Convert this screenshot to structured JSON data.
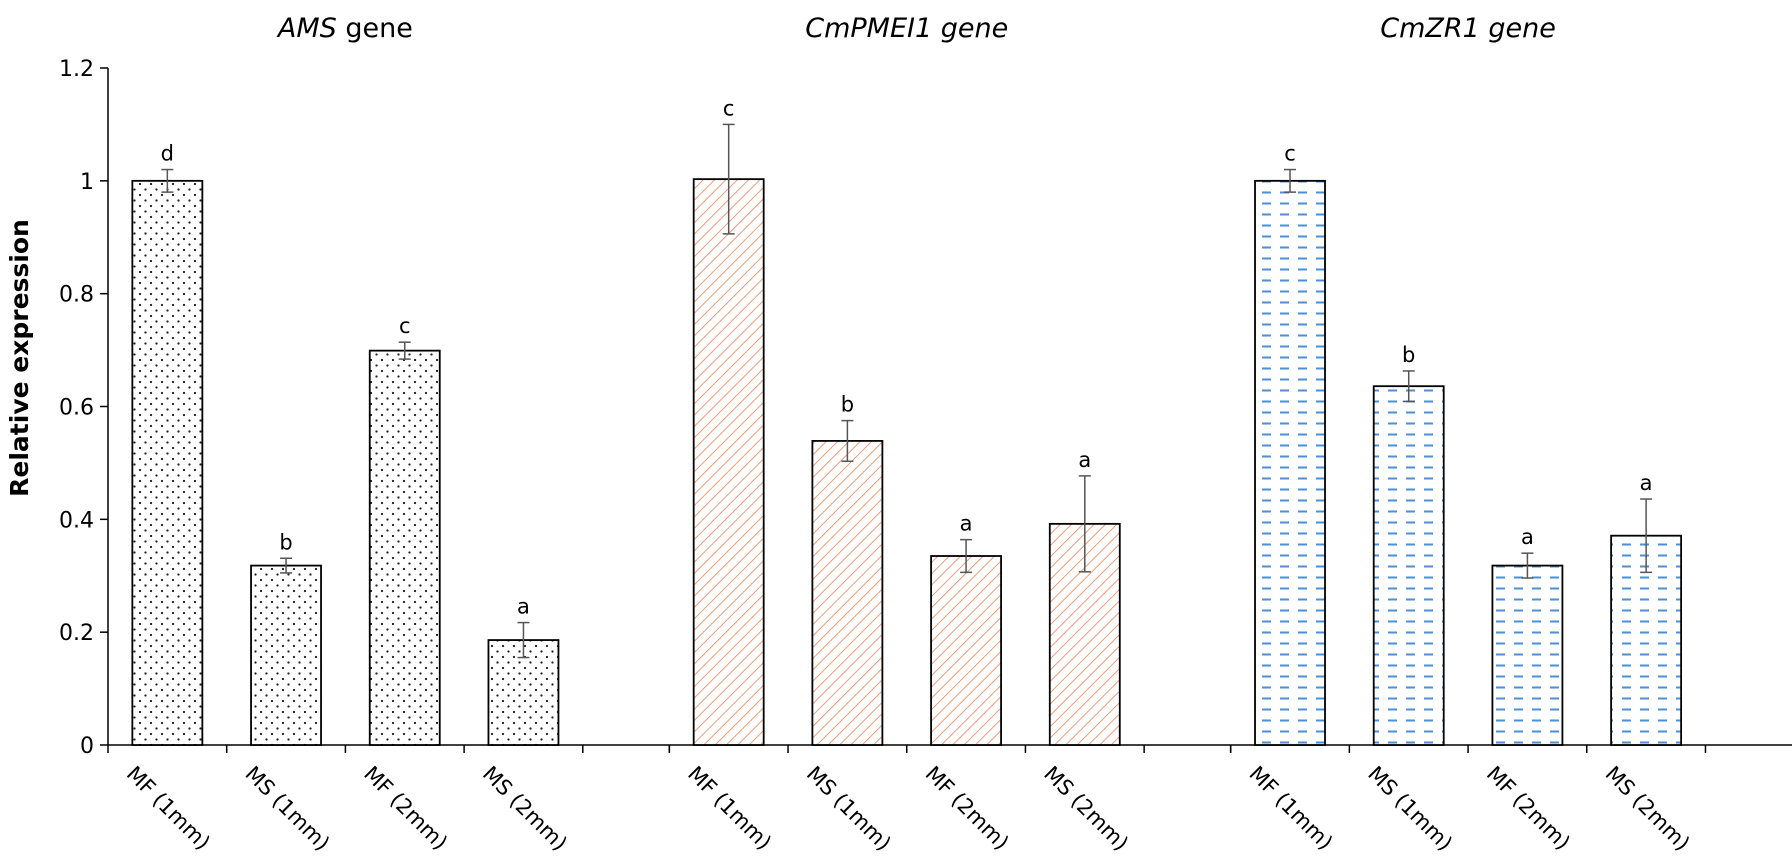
{
  "chart_data": {
    "type": "bar",
    "ylabel": "Relative expression",
    "ylim": [
      0,
      1.2
    ],
    "yticks": [
      "0",
      "0.2",
      "0.4",
      "0.6",
      "0.8",
      "1",
      "1.2"
    ],
    "categories": [
      "MF (1mm)",
      "MS (1mm)",
      "MF (2mm)",
      "MS (2mm)"
    ],
    "panels": [
      {
        "title_italic": "AMS",
        "title_plain": " gene",
        "pattern": "dots",
        "color": "#222222",
        "values": [
          1.0,
          0.318,
          0.699,
          0.186
        ],
        "errors": [
          0.02,
          0.013,
          0.015,
          0.031
        ],
        "letters": [
          "d",
          "b",
          "c",
          "a"
        ]
      },
      {
        "title_italic": "CmPMEI1 gene",
        "title_plain": "",
        "pattern": "hatch",
        "color": "#e8855c",
        "values": [
          1.003,
          0.539,
          0.335,
          0.392
        ],
        "errors": [
          0.097,
          0.036,
          0.029,
          0.085
        ],
        "letters": [
          "c",
          "b",
          "a",
          "a"
        ]
      },
      {
        "title_italic": "CmZR1 gene",
        "title_plain": "",
        "pattern": "dashes",
        "color": "#4a90d9",
        "values": [
          1.0,
          0.636,
          0.318,
          0.371
        ],
        "errors": [
          0.02,
          0.027,
          0.022,
          0.065
        ],
        "letters": [
          "c",
          "b",
          "a",
          "a"
        ]
      }
    ]
  }
}
